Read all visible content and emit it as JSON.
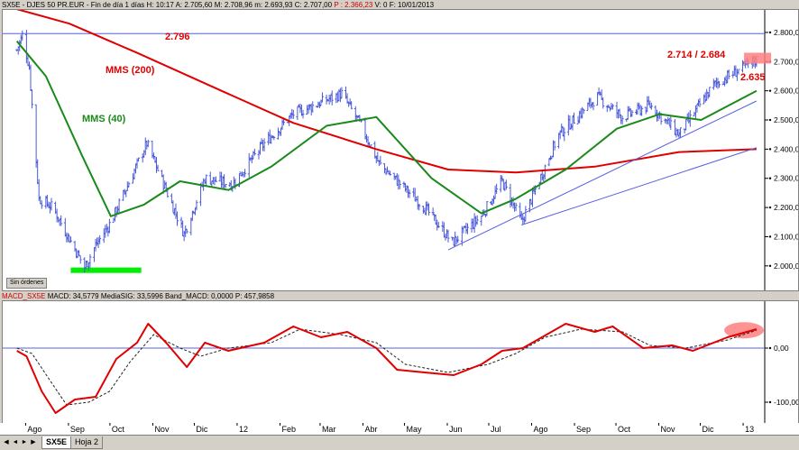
{
  "header": {
    "symbol": "SX5E - DJES 50 PR.EUR",
    "info": "- Fin de día 1 días",
    "H": "H: 10:17",
    "A": "A: 2.705,60",
    "M": "M: 2.708,96",
    "m": "m: 2.693,93",
    "C": "C: 2.707,00",
    "P": "P : 2.366,23",
    "V": "V: 0",
    "F": "F: 10/01/2013"
  },
  "macd_header": {
    "name": "MACD_SX5E",
    "macd": "MACD: 34,5779",
    "signal": "MediaSIG: 33,5996",
    "band": "Band_MACD: 0,0000",
    "p": "P: 457,9858"
  },
  "button_sin_ordenes": "Sin órdenes",
  "tabs": [
    "SX5E",
    "Hoja 2"
  ],
  "colors": {
    "price_bars": "#4a5ad8",
    "mms200": "#e00000",
    "mms40": "#1a8a1a",
    "trend": "#5560e0",
    "macd": "#e00000",
    "signal": "#222222",
    "highlight": "#ff8080",
    "support_bar": "#00ee00"
  },
  "chart_data": [
    {
      "type": "bar",
      "subtype": "ohlc",
      "x_ticks": [
        "Ago",
        "Sep",
        "Oct",
        "Nov",
        "Dic",
        "12",
        "Feb",
        "Mar",
        "Abr",
        "May",
        "Jun",
        "Jul",
        "Ago",
        "Sep",
        "Oct",
        "Nov",
        "Dic",
        "13"
      ],
      "y_ticks": [
        "2.800,00",
        "2.700,00",
        "2.600,00",
        "2.500,00",
        "2.400,00",
        "2.300,00",
        "2.200,00",
        "2.100,00",
        "2.000,00"
      ],
      "ylim": [
        1950,
        2840
      ],
      "price_keypoints": [
        {
          "x": "2011-07-25",
          "y": 2740
        },
        {
          "x": "2011-07-29",
          "y": 2790
        },
        {
          "x": "2011-08-03",
          "y": 2680
        },
        {
          "x": "2011-08-10",
          "y": 2230
        },
        {
          "x": "2011-08-20",
          "y": 2200
        },
        {
          "x": "2011-09-12",
          "y": 1995
        },
        {
          "x": "2011-09-20",
          "y": 2070
        },
        {
          "x": "2011-10-01",
          "y": 2150
        },
        {
          "x": "2011-10-27",
          "y": 2420
        },
        {
          "x": "2011-11-23",
          "y": 2110
        },
        {
          "x": "2011-12-08",
          "y": 2300
        },
        {
          "x": "2011-12-28",
          "y": 2280
        },
        {
          "x": "2012-01-20",
          "y": 2420
        },
        {
          "x": "2012-02-10",
          "y": 2520
        },
        {
          "x": "2012-03-16",
          "y": 2590
        },
        {
          "x": "2012-03-30",
          "y": 2480
        },
        {
          "x": "2012-04-12",
          "y": 2350
        },
        {
          "x": "2012-05-15",
          "y": 2200
        },
        {
          "x": "2012-06-04",
          "y": 2080
        },
        {
          "x": "2012-06-25",
          "y": 2170
        },
        {
          "x": "2012-07-10",
          "y": 2290
        },
        {
          "x": "2012-07-24",
          "y": 2150
        },
        {
          "x": "2012-08-20",
          "y": 2450
        },
        {
          "x": "2012-09-17",
          "y": 2580
        },
        {
          "x": "2012-10-05",
          "y": 2510
        },
        {
          "x": "2012-10-25",
          "y": 2550
        },
        {
          "x": "2012-11-15",
          "y": 2450
        },
        {
          "x": "2012-12-10",
          "y": 2620
        },
        {
          "x": "2013-01-04",
          "y": 2690
        },
        {
          "x": "2013-01-10",
          "y": 2707
        }
      ],
      "series": [
        {
          "name": "MMS (200)",
          "points": [
            {
              "x": "2011-07-25",
              "y": 2880
            },
            {
              "x": "2011-09-01",
              "y": 2830
            },
            {
              "x": "2011-10-20",
              "y": 2730
            },
            {
              "x": "2011-12-20",
              "y": 2600
            },
            {
              "x": "2012-02-10",
              "y": 2490
            },
            {
              "x": "2012-04-10",
              "y": 2400
            },
            {
              "x": "2012-06-01",
              "y": 2330
            },
            {
              "x": "2012-07-20",
              "y": 2320
            },
            {
              "x": "2012-09-15",
              "y": 2340
            },
            {
              "x": "2012-11-15",
              "y": 2390
            },
            {
              "x": "2013-01-10",
              "y": 2400
            }
          ]
        },
        {
          "name": "MMS (40)",
          "points": [
            {
              "x": "2011-07-25",
              "y": 2770
            },
            {
              "x": "2011-08-15",
              "y": 2650
            },
            {
              "x": "2011-09-10",
              "y": 2380
            },
            {
              "x": "2011-10-01",
              "y": 2170
            },
            {
              "x": "2011-10-25",
              "y": 2210
            },
            {
              "x": "2011-11-20",
              "y": 2290
            },
            {
              "x": "2011-12-25",
              "y": 2260
            },
            {
              "x": "2012-01-25",
              "y": 2340
            },
            {
              "x": "2012-03-05",
              "y": 2480
            },
            {
              "x": "2012-04-10",
              "y": 2510
            },
            {
              "x": "2012-05-20",
              "y": 2300
            },
            {
              "x": "2012-06-25",
              "y": 2180
            },
            {
              "x": "2012-07-20",
              "y": 2230
            },
            {
              "x": "2012-08-25",
              "y": 2330
            },
            {
              "x": "2012-10-01",
              "y": 2470
            },
            {
              "x": "2012-11-01",
              "y": 2520
            },
            {
              "x": "2012-12-01",
              "y": 2500
            },
            {
              "x": "2013-01-10",
              "y": 2600
            }
          ]
        }
      ],
      "trendlines": [
        {
          "from": {
            "x": "2012-06-01",
            "y": 2055
          },
          "to": {
            "x": "2013-01-10",
            "y": 2565
          }
        },
        {
          "from": {
            "x": "2012-07-24",
            "y": 2140
          },
          "to": {
            "x": "2013-01-10",
            "y": 2405
          }
        }
      ],
      "hline": 2796,
      "annotations": [
        "2.796",
        "MMS (200)",
        "MMS (40)",
        "2.714 / 2.684",
        "2.635"
      ],
      "support_zone": {
        "from": "2011-09-02",
        "to": "2011-10-23",
        "y": 1985
      }
    },
    {
      "type": "line",
      "x_ticks": [
        "Ago",
        "Sep",
        "Oct",
        "Nov",
        "Dic",
        "12",
        "Feb",
        "Mar",
        "Abr",
        "May",
        "Jun",
        "Jul",
        "Ago",
        "Sep",
        "Oct",
        "Nov",
        "Dic",
        "13"
      ],
      "y_ticks": [
        "0,00",
        "-100,00"
      ],
      "ylim": [
        -130,
        80
      ],
      "zero_line": 0,
      "series": [
        {
          "name": "MACD",
          "points": [
            {
              "x": "2011-07-25",
              "y": -5
            },
            {
              "x": "2011-08-01",
              "y": -15
            },
            {
              "x": "2011-08-12",
              "y": -80
            },
            {
              "x": "2011-08-22",
              "y": -120
            },
            {
              "x": "2011-09-05",
              "y": -95
            },
            {
              "x": "2011-09-20",
              "y": -90
            },
            {
              "x": "2011-10-05",
              "y": -20
            },
            {
              "x": "2011-10-20",
              "y": 10
            },
            {
              "x": "2011-10-28",
              "y": 45
            },
            {
              "x": "2011-11-10",
              "y": 10
            },
            {
              "x": "2011-11-25",
              "y": -35
            },
            {
              "x": "2011-12-08",
              "y": 10
            },
            {
              "x": "2011-12-25",
              "y": -5
            },
            {
              "x": "2012-01-20",
              "y": 10
            },
            {
              "x": "2012-02-10",
              "y": 40
            },
            {
              "x": "2012-03-01",
              "y": 20
            },
            {
              "x": "2012-03-20",
              "y": 30
            },
            {
              "x": "2012-04-10",
              "y": 0
            },
            {
              "x": "2012-04-25",
              "y": -40
            },
            {
              "x": "2012-05-15",
              "y": -45
            },
            {
              "x": "2012-06-05",
              "y": -50
            },
            {
              "x": "2012-06-25",
              "y": -30
            },
            {
              "x": "2012-07-10",
              "y": -5
            },
            {
              "x": "2012-07-25",
              "y": 0
            },
            {
              "x": "2012-08-25",
              "y": 45
            },
            {
              "x": "2012-09-15",
              "y": 30
            },
            {
              "x": "2012-09-28",
              "y": 40
            },
            {
              "x": "2012-10-20",
              "y": 0
            },
            {
              "x": "2012-11-10",
              "y": 5
            },
            {
              "x": "2012-11-25",
              "y": -5
            },
            {
              "x": "2012-12-20",
              "y": 20
            },
            {
              "x": "2013-01-10",
              "y": 35
            }
          ]
        },
        {
          "name": "MediaSIG",
          "points": [
            {
              "x": "2011-07-25",
              "y": 0
            },
            {
              "x": "2011-08-05",
              "y": -10
            },
            {
              "x": "2011-08-18",
              "y": -60
            },
            {
              "x": "2011-08-30",
              "y": -105
            },
            {
              "x": "2011-09-15",
              "y": -100
            },
            {
              "x": "2011-09-30",
              "y": -80
            },
            {
              "x": "2011-10-15",
              "y": -25
            },
            {
              "x": "2011-11-01",
              "y": 25
            },
            {
              "x": "2011-11-20",
              "y": 0
            },
            {
              "x": "2011-12-05",
              "y": -15
            },
            {
              "x": "2011-12-25",
              "y": 0
            },
            {
              "x": "2012-01-25",
              "y": 10
            },
            {
              "x": "2012-02-15",
              "y": 35
            },
            {
              "x": "2012-03-15",
              "y": 25
            },
            {
              "x": "2012-04-10",
              "y": 10
            },
            {
              "x": "2012-05-01",
              "y": -30
            },
            {
              "x": "2012-06-01",
              "y": -45
            },
            {
              "x": "2012-06-30",
              "y": -30
            },
            {
              "x": "2012-07-20",
              "y": -10
            },
            {
              "x": "2012-08-10",
              "y": 20
            },
            {
              "x": "2012-09-05",
              "y": 35
            },
            {
              "x": "2012-10-05",
              "y": 30
            },
            {
              "x": "2012-10-25",
              "y": 5
            },
            {
              "x": "2012-11-20",
              "y": 0
            },
            {
              "x": "2012-12-20",
              "y": 15
            },
            {
              "x": "2013-01-10",
              "y": 33
            }
          ]
        }
      ]
    }
  ]
}
